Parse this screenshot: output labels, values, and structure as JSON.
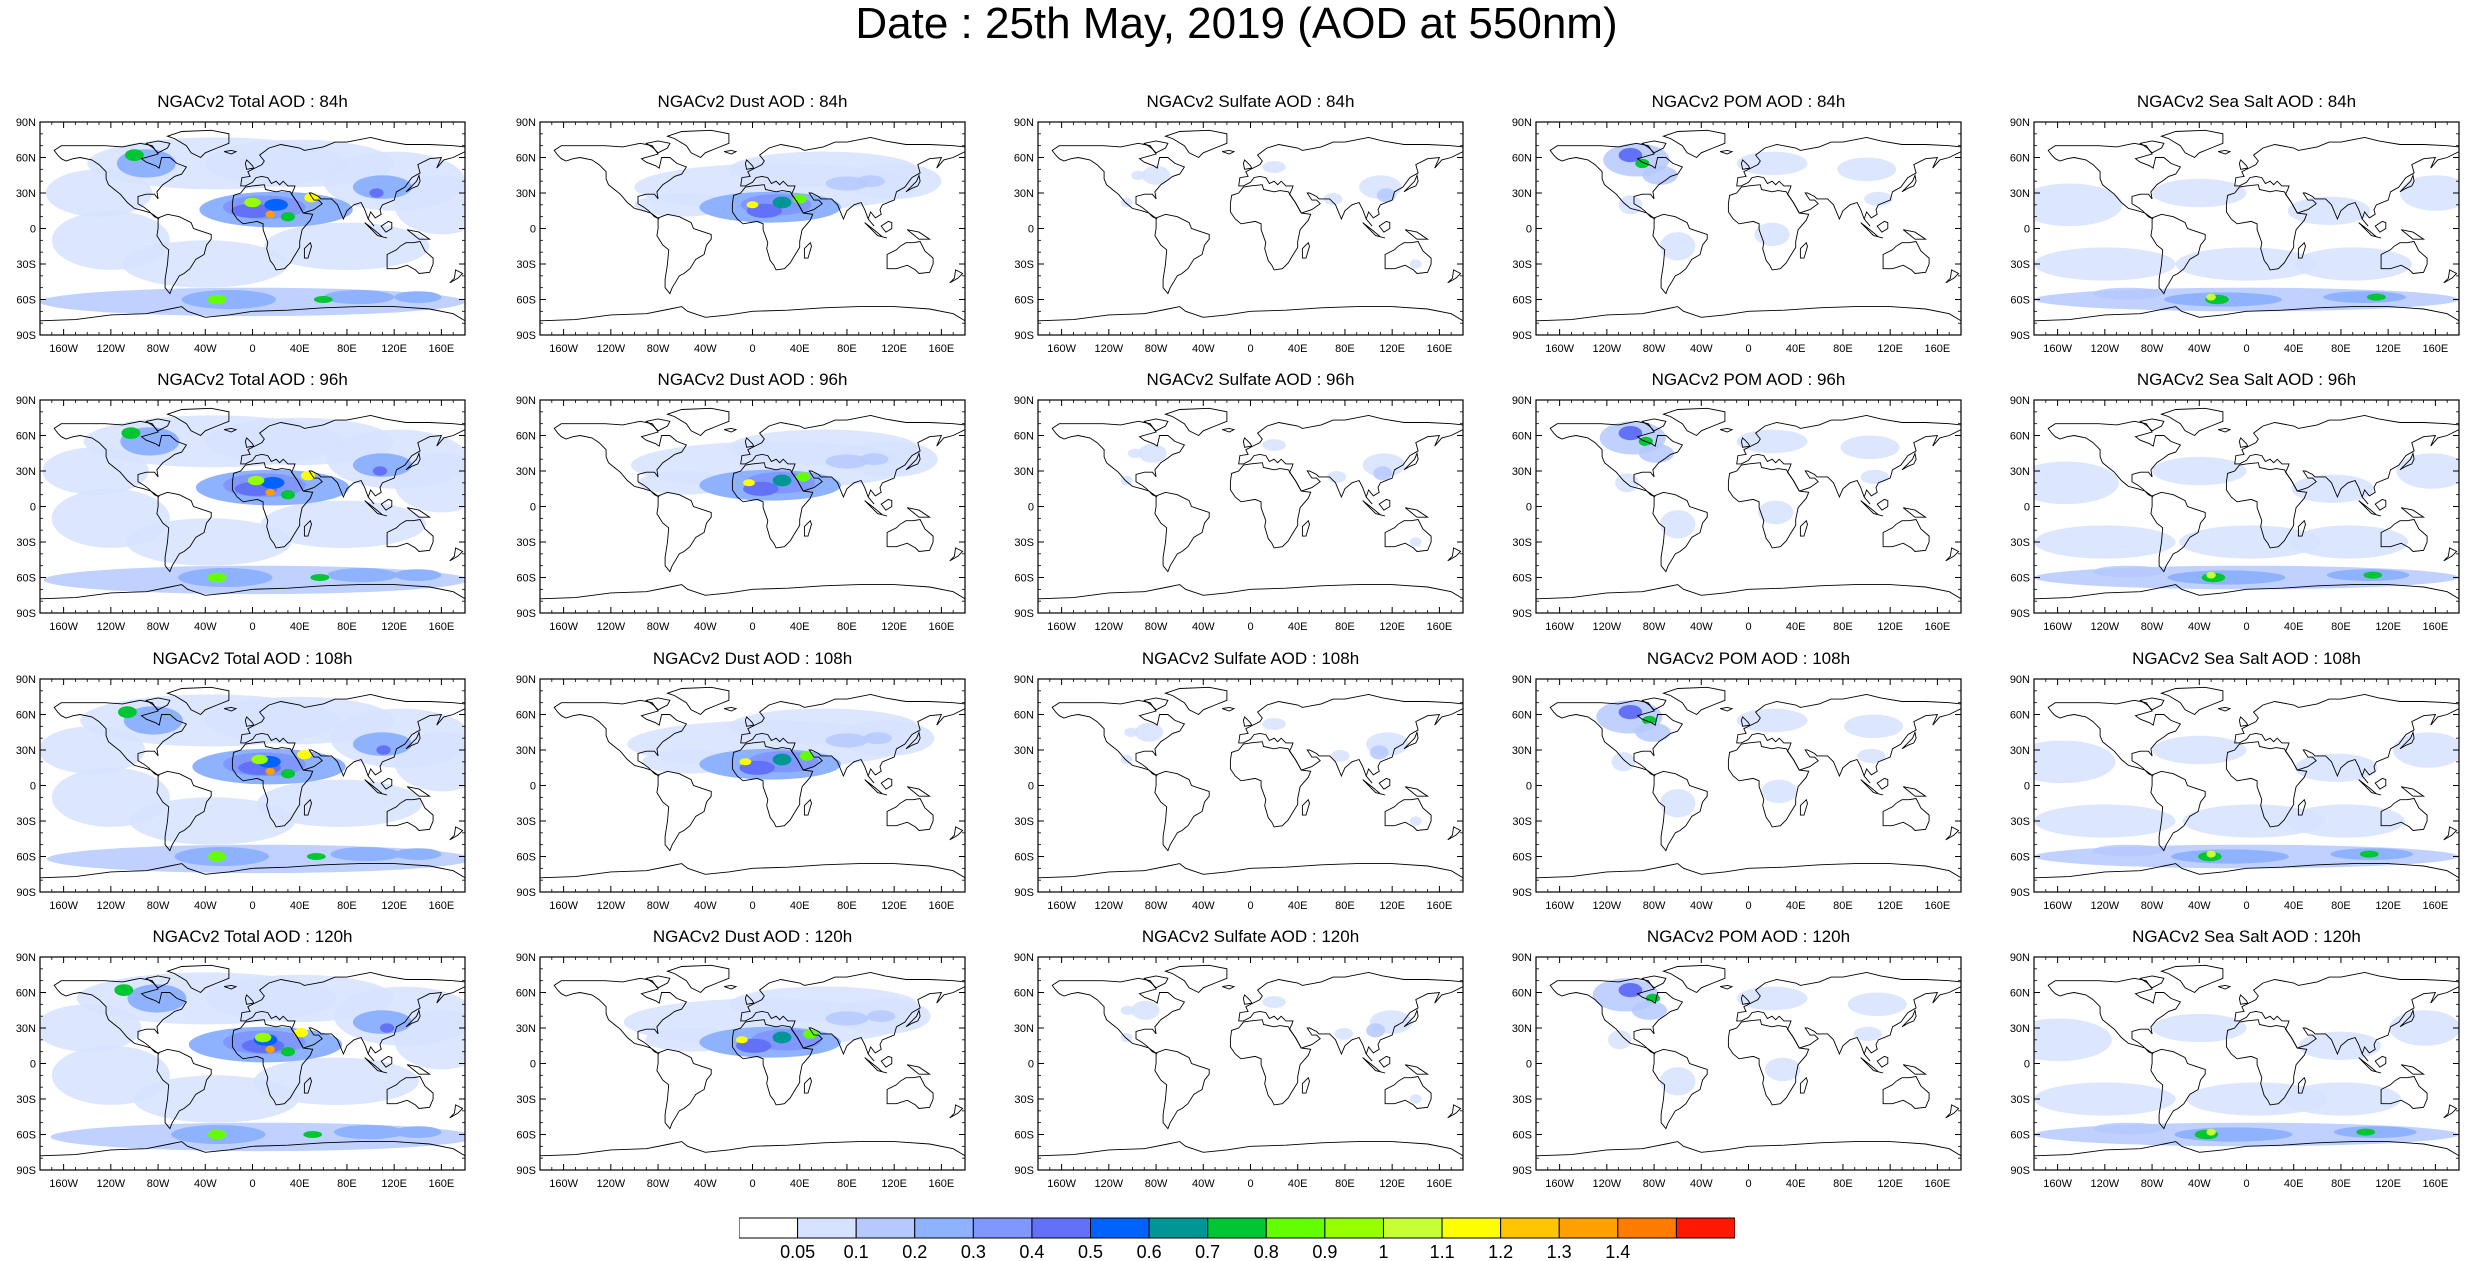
{
  "title": "Date : 25th May, 2019 (AOD at 550nm)",
  "map": {
    "lat_ticks": [
      "90N",
      "60N",
      "30N",
      "0",
      "30S",
      "60S",
      "90S"
    ],
    "lon_ticks": [
      "160W",
      "120W",
      "80W",
      "40W",
      "0",
      "40E",
      "80E",
      "120E",
      "160E"
    ],
    "projection": "cylindrical equidistant",
    "extent": {
      "lon": [
        -180,
        180
      ],
      "lat": [
        -90,
        90
      ]
    }
  },
  "panels": [
    {
      "title": "NGACv2 Total AOD : 84h",
      "species": "total",
      "forecast_hour": 84
    },
    {
      "title": "NGACv2 Dust AOD : 84h",
      "species": "dust",
      "forecast_hour": 84
    },
    {
      "title": "NGACv2 Sulfate AOD : 84h",
      "species": "sulfate",
      "forecast_hour": 84
    },
    {
      "title": "NGACv2 POM AOD : 84h",
      "species": "pom",
      "forecast_hour": 84
    },
    {
      "title": "NGACv2 Sea Salt AOD : 84h",
      "species": "seasalt",
      "forecast_hour": 84
    },
    {
      "title": "NGACv2 Total AOD : 96h",
      "species": "total",
      "forecast_hour": 96
    },
    {
      "title": "NGACv2 Dust AOD : 96h",
      "species": "dust",
      "forecast_hour": 96
    },
    {
      "title": "NGACv2 Sulfate AOD : 96h",
      "species": "sulfate",
      "forecast_hour": 96
    },
    {
      "title": "NGACv2 POM AOD : 96h",
      "species": "pom",
      "forecast_hour": 96
    },
    {
      "title": "NGACv2 Sea Salt AOD : 96h",
      "species": "seasalt",
      "forecast_hour": 96
    },
    {
      "title": "NGACv2 Total AOD : 108h",
      "species": "total",
      "forecast_hour": 108
    },
    {
      "title": "NGACv2 Dust AOD : 108h",
      "species": "dust",
      "forecast_hour": 108
    },
    {
      "title": "NGACv2 Sulfate AOD : 108h",
      "species": "sulfate",
      "forecast_hour": 108
    },
    {
      "title": "NGACv2 POM AOD : 108h",
      "species": "pom",
      "forecast_hour": 108
    },
    {
      "title": "NGACv2 Sea Salt AOD : 108h",
      "species": "seasalt",
      "forecast_hour": 108
    },
    {
      "title": "NGACv2 Total AOD : 120h",
      "species": "total",
      "forecast_hour": 120
    },
    {
      "title": "NGACv2 Dust AOD : 120h",
      "species": "dust",
      "forecast_hour": 120
    },
    {
      "title": "NGACv2 Sulfate AOD : 120h",
      "species": "sulfate",
      "forecast_hour": 120
    },
    {
      "title": "NGACv2 POM AOD : 120h",
      "species": "pom",
      "forecast_hour": 120
    },
    {
      "title": "NGACv2 Sea Salt  AOD : 120h",
      "species": "seasalt",
      "forecast_hour": 120
    }
  ],
  "colorbar": {
    "labels": [
      "0.05",
      "0.1",
      "0.2",
      "0.3",
      "0.4",
      "0.5",
      "0.6",
      "0.7",
      "0.8",
      "0.9",
      "1",
      "1.1",
      "1.2",
      "1.3",
      "1.4"
    ],
    "colors": [
      "#ffffff",
      "#d6e2ff",
      "#b5c9ff",
      "#8fb2ff",
      "#7f97ff",
      "#6370f8",
      "#0063ff",
      "#009696",
      "#00c633",
      "#63ff00",
      "#96ff00",
      "#c6ff33",
      "#ffff00",
      "#ffc600",
      "#ffa000",
      "#ff7c00",
      "#ff1900"
    ]
  }
}
